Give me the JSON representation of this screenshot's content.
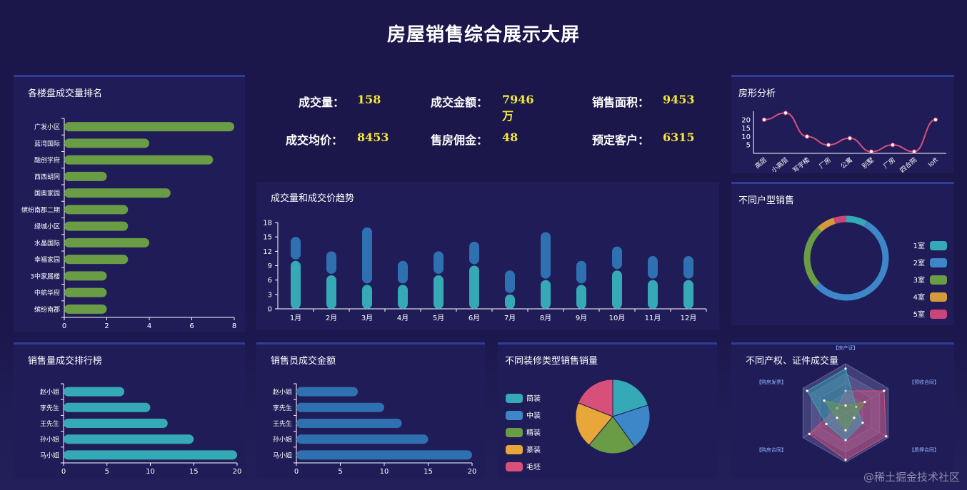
{
  "page_title": "房屋销售综合展示大屏",
  "kpis": [
    {
      "label": "成交量：",
      "value": "158"
    },
    {
      "label": "成交金额：",
      "value": "7946万"
    },
    {
      "label": "销售面积：",
      "value": "9453"
    },
    {
      "label": "成交均价：",
      "value": "8453"
    },
    {
      "label": "售房佣金：",
      "value": "48"
    },
    {
      "label": "预定客户：",
      "value": "6315"
    }
  ],
  "watermark": "@稀土掘金技术社区",
  "colors": {
    "bg": "#1b174a",
    "panel": "#201c58",
    "green": "#6a9c45",
    "teal": "#34a5b4",
    "blue": "#2f6fb0",
    "kpi": "#f4e83b",
    "pink": "#d8507a"
  },
  "chart_data": [
    {
      "id": "ranking",
      "type": "bar",
      "orientation": "horizontal",
      "title": "各楼盘成交量排名",
      "categories": [
        "广发小区",
        "蓝湾国际",
        "融创学府",
        "西西胡同",
        "国奥家园",
        "缤纷南郡二期",
        "绿城小区",
        "水晶国际",
        "幸福家园",
        "3中家属楼",
        "中航华府",
        "缤纷南郡"
      ],
      "values": [
        8,
        4,
        7,
        2,
        5,
        3,
        3,
        4,
        3,
        2,
        2,
        2
      ],
      "xlim": [
        0,
        8
      ],
      "xticks": [
        0,
        2,
        4,
        6,
        8
      ],
      "color": "#6a9c45"
    },
    {
      "id": "trend",
      "type": "bar",
      "stacked": true,
      "title": "成交量和成交价趋势",
      "categories": [
        "1月",
        "2月",
        "3月",
        "4月",
        "5月",
        "6月",
        "7月",
        "8月",
        "9月",
        "10月",
        "11月",
        "12月"
      ],
      "series": [
        {
          "values": [
            10,
            7,
            5,
            5,
            7,
            9,
            3,
            6,
            5,
            8,
            6,
            6
          ],
          "color": "#35a9b6"
        },
        {
          "values": [
            5,
            5,
            12,
            5,
            5,
            5,
            5,
            10,
            5,
            5,
            5,
            5
          ],
          "color": "#2f70b0"
        }
      ],
      "ylim": [
        0,
        18
      ],
      "yticks": [
        0,
        3,
        6,
        9,
        12,
        15,
        18
      ]
    },
    {
      "id": "house_shape",
      "type": "line",
      "title": "房形分析",
      "categories": [
        "高层",
        "小高层",
        "写字楼",
        "厂房",
        "公寓",
        "别墅",
        "厂房",
        "四合院",
        "loft"
      ],
      "values": [
        20,
        24,
        10,
        5,
        9,
        1,
        5,
        1,
        20
      ],
      "ylim": [
        0,
        25
      ],
      "yticks": [
        5,
        10,
        15,
        20
      ],
      "color": "#d8507a"
    },
    {
      "id": "room_types",
      "type": "pie",
      "donut": true,
      "title": "不同户型销售",
      "labels": [
        "1室",
        "2室",
        "3室",
        "4室",
        "5室"
      ],
      "values": [
        8,
        55,
        25,
        7,
        5
      ],
      "colors": [
        "#35a9b6",
        "#3d87c9",
        "#6a9c45",
        "#d59a3a",
        "#c9457a"
      ]
    },
    {
      "id": "sales_rank",
      "type": "bar",
      "orientation": "horizontal",
      "title": "销售量成交排行榜",
      "categories": [
        "赵小姐",
        "李先生",
        "王先生",
        "孙小姐",
        "马小姐"
      ],
      "values": [
        7,
        10,
        12,
        15,
        20
      ],
      "xlim": [
        0,
        20
      ],
      "xticks": [
        0,
        5,
        10,
        15,
        20
      ],
      "color": "#35a9b6"
    },
    {
      "id": "sales_amount",
      "type": "bar",
      "orientation": "horizontal",
      "title": "销售员成交金额",
      "categories": [
        "赵小姐",
        "李先生",
        "王先生",
        "孙小姐",
        "马小姐"
      ],
      "values": [
        7,
        10,
        12,
        15,
        20
      ],
      "xlim": [
        0,
        20
      ],
      "xticks": [
        0,
        5,
        10,
        15,
        20
      ],
      "color": "#2f70b0"
    },
    {
      "id": "decoration",
      "type": "pie",
      "title": "不同装修类型销售销量",
      "labels": [
        "简装",
        "中装",
        "精装",
        "豪装",
        "毛坯"
      ],
      "values": [
        20,
        20,
        21,
        20,
        19
      ],
      "colors": [
        "#35a9b6",
        "#3d87c9",
        "#6a9c45",
        "#e8a738",
        "#d8507a"
      ]
    },
    {
      "id": "property_radar",
      "type": "radar",
      "title": "不同产权、证件成交量",
      "indicators": [
        "【房产证】",
        "【预收合同】",
        "【质押合同】",
        "【购房合同】",
        "【购房合同】",
        "【购房发票】"
      ],
      "series": [
        {
          "values": [
            0.45,
            0.9,
            0.95,
            0.95,
            0.85,
            0.2
          ],
          "color": "#d8507a"
        },
        {
          "values": [
            0.9,
            0.25,
            0.4,
            0.55,
            0.45,
            0.9
          ],
          "color": "#35a9b6"
        },
        {
          "values": [
            0.15,
            0.45,
            0.2,
            0.35,
            0.2,
            0.5
          ],
          "color": "#6a9c45"
        }
      ]
    }
  ]
}
